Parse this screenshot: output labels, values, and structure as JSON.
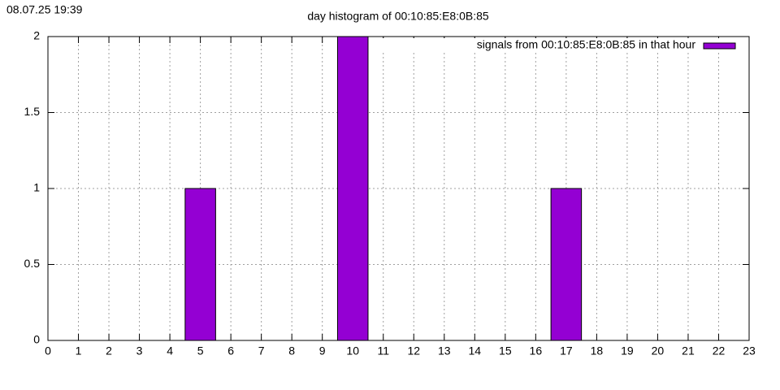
{
  "chart_data": {
    "type": "bar",
    "timestamp": "08.07.25 19:39",
    "title": "day histogram of 00:10:85:E8:0B:85",
    "x": [
      5,
      10,
      17
    ],
    "series": [
      {
        "name": "signals from 00:10:85:E8:0B:85 in that hour",
        "color": "#9400d3",
        "values": [
          1,
          2,
          1
        ]
      }
    ],
    "xlim": [
      0,
      23
    ],
    "xticks": [
      0,
      1,
      2,
      3,
      4,
      5,
      6,
      7,
      8,
      9,
      10,
      11,
      12,
      13,
      14,
      15,
      16,
      17,
      18,
      19,
      20,
      21,
      22,
      23
    ],
    "ylim": [
      0,
      2
    ],
    "yticks": [
      0,
      0.5,
      1,
      1.5,
      2
    ],
    "grid": true,
    "legend": "top-right"
  }
}
